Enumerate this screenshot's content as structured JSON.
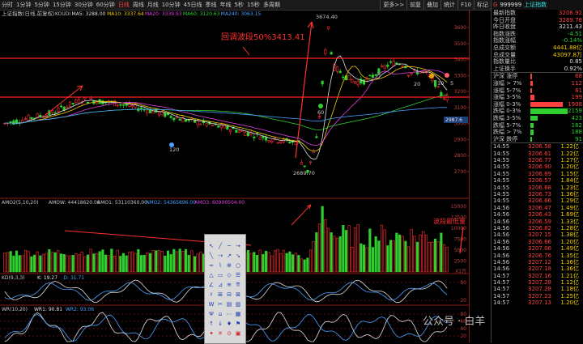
{
  "toolbar": {
    "periods": [
      "分时",
      "1分钟",
      "5分钟",
      "15分钟",
      "30分钟",
      "60分钟",
      "日线",
      "周线",
      "月线",
      "10分钟",
      "45日线",
      "季线",
      "年线",
      "5秒",
      "15秒",
      "多周期"
    ],
    "active_period": "日线",
    "buttons": [
      "更多>>",
      "前复",
      "叠加",
      "统计",
      "F10",
      "标记"
    ]
  },
  "main_chart": {
    "title": "上证指数(日线,前复权)",
    "ma_labels": [
      {
        "text": "KOUDI",
        "color": "#c8c8c8"
      },
      {
        "text": "MA5: 3288.00",
        "color": "#e0e0e0"
      },
      {
        "text": "MA10: 3337.64",
        "color": "#f0d000"
      },
      {
        "text": "MA20: 3339.93",
        "color": "#e040e0"
      },
      {
        "text": "MA60: 3120.63",
        "color": "#2fcf2f"
      },
      {
        "text": "MA240: 3063.15",
        "color": "#4aa0ff"
      }
    ],
    "annotation": "回调波段50%3413.41",
    "high_label": "3674.40",
    "low_label": "2689.70",
    "marker_60": "60",
    "marker_120": "120",
    "marker_20": "20",
    "marker_10": "10",
    "marker_5": "5",
    "price_tag": "2987.6",
    "y_ticks": [
      "3600",
      "3500",
      "3400",
      "3300",
      "3200",
      "3100",
      "3000",
      "2900",
      "2800",
      "2700"
    ]
  },
  "volume_panel": {
    "title": "AMO2(5,10,20)",
    "labels": [
      {
        "text": "AMOW: 44418620.00",
        "color": "#c8c8c8"
      },
      {
        "text": "AMO1: 53110360.00",
        "color": "#c8c8c8"
      },
      {
        "text": "AMO2: 54365896.00",
        "color": "#4aa0ff"
      },
      {
        "text": "AMO3: 60900504.00",
        "color": "#e040e0"
      }
    ],
    "annotation": "波段最低量",
    "y_ticks": [
      "15000",
      "12500",
      "10000",
      "7500",
      "5000",
      "2500"
    ],
    "unit_label": "X1万"
  },
  "kd_panel": {
    "title": "KD(9,3,3)",
    "labels": [
      {
        "text": "K: 19.27",
        "color": "#e0e0e0"
      },
      {
        "text": "D: 31.71",
        "color": "#4aa0ff"
      }
    ],
    "y_ticks": [
      "80",
      "20"
    ]
  },
  "wr_panel": {
    "title": "WR(10,20)",
    "labels": [
      {
        "text": "WR1: 90.81",
        "color": "#e0e0e0"
      },
      {
        "text": "WR2: 93.06",
        "color": "#4aa0ff"
      }
    ],
    "y_ticks": [
      "80",
      "60",
      "40",
      "20"
    ]
  },
  "right_panel": {
    "code": "999999",
    "name": "上证指数",
    "g_label": "G",
    "quote": [
      {
        "label": "最新指数",
        "value": "3206.92",
        "color": "red"
      },
      {
        "label": "今日开盘",
        "value": "3289.78",
        "color": "red"
      },
      {
        "label": "昨日收盘",
        "value": "3211.43",
        "color": "white"
      },
      {
        "label": "指数涨跌",
        "value": "-4.51",
        "color": "green"
      },
      {
        "label": "指数涨幅",
        "value": "-0.14%",
        "color": "green"
      },
      {
        "label": "总成交额",
        "value": "4441.88亿",
        "color": "yellow"
      },
      {
        "label": "总成交量",
        "value": "43097.8万",
        "color": "yellow"
      },
      {
        "label": "指数量比",
        "value": "0.85",
        "color": "white"
      },
      {
        "label": "上证换手",
        "value": "0.92%",
        "color": "white"
      }
    ],
    "breadth": [
      {
        "label": "沪深 涨停",
        "value": "68",
        "color": "red",
        "bar": 0.04
      },
      {
        "label": "涨幅 > 7%",
        "value": "112",
        "color": "red",
        "bar": 0.06
      },
      {
        "label": "涨幅 5-7%",
        "value": "81",
        "color": "red",
        "bar": 0.04
      },
      {
        "label": "涨幅 3-5%",
        "value": "199",
        "color": "red",
        "bar": 0.1
      },
      {
        "label": "涨幅 0-3%",
        "value": "1908",
        "color": "red",
        "bar": 0.88
      },
      {
        "label": "跌幅 0-3%",
        "value": "2159",
        "color": "green",
        "bar": 1.0
      },
      {
        "label": "跌幅 3-5%",
        "value": "423",
        "color": "green",
        "bar": 0.2
      },
      {
        "label": "跌幅 5-7%",
        "value": "162",
        "color": "green",
        "bar": 0.08
      },
      {
        "label": "跌幅 > 7%",
        "value": "188",
        "color": "green",
        "bar": 0.09
      },
      {
        "label": "沪深 跌停",
        "value": "91",
        "color": "green",
        "bar": 0.04
      }
    ],
    "ticks": [
      {
        "time": "14:55",
        "price": "3206.58",
        "amount": "1.22亿",
        "color": "red"
      },
      {
        "time": "14:55",
        "price": "3206.61",
        "amount": "1.22亿",
        "color": "red"
      },
      {
        "time": "14:55",
        "price": "3206.77",
        "amount": "1.27亿",
        "color": "red"
      },
      {
        "time": "14:55",
        "price": "3206.90",
        "amount": "1.20亿",
        "color": "red"
      },
      {
        "time": "14:55",
        "price": "3206.89",
        "amount": "1.15亿",
        "color": "red"
      },
      {
        "time": "14:55",
        "price": "3206.57",
        "amount": "1.84亿",
        "color": "red"
      },
      {
        "time": "14:55",
        "price": "3206.68",
        "amount": "1.23亿",
        "color": "red"
      },
      {
        "time": "14:55",
        "price": "3206.73",
        "amount": "1.36亿",
        "color": "red"
      },
      {
        "time": "14:55",
        "price": "3206.66",
        "amount": "1.29亿",
        "color": "red"
      },
      {
        "time": "14:56",
        "price": "3206.47",
        "amount": "1.49亿",
        "color": "red"
      },
      {
        "time": "14:56",
        "price": "3206.43",
        "amount": "1.69亿",
        "color": "red"
      },
      {
        "time": "14:56",
        "price": "3206.59",
        "amount": "1.33亿",
        "color": "red"
      },
      {
        "time": "14:56",
        "price": "3206.82",
        "amount": "1.28亿",
        "color": "red"
      },
      {
        "time": "14:56",
        "price": "3207.15",
        "amount": "1.38亿",
        "color": "red"
      },
      {
        "time": "14:56",
        "price": "3206.66",
        "amount": "1.20亿",
        "color": "red"
      },
      {
        "time": "14:56",
        "price": "3207.06",
        "amount": "1.49亿",
        "color": "red"
      },
      {
        "time": "14:56",
        "price": "3206.76",
        "amount": "1.35亿",
        "color": "red"
      },
      {
        "time": "14:56",
        "price": "3207.12",
        "amount": "1.36亿",
        "color": "red"
      },
      {
        "time": "14:56",
        "price": "3207.18",
        "amount": "1.36亿",
        "color": "red"
      },
      {
        "time": "14:57",
        "price": "3207.16",
        "amount": "1.21亿",
        "color": "red"
      },
      {
        "time": "14:57",
        "price": "3207.28",
        "amount": "1.12亿",
        "color": "red"
      },
      {
        "time": "14:57",
        "price": "3207.28",
        "amount": "1.18亿",
        "color": "red"
      },
      {
        "time": "14:57",
        "price": "3207.23",
        "amount": "1.25亿",
        "color": "red"
      },
      {
        "time": "14:57",
        "price": "3207.13",
        "amount": "1.20亿",
        "color": "red"
      }
    ]
  },
  "watermark": "公众号 · 白羊"
}
